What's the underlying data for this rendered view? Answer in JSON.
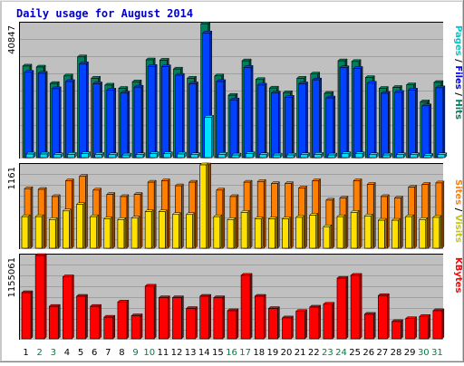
{
  "chart_data": [
    {
      "type": "bar",
      "title": "Daily usage for August 2014",
      "categories": [
        "1",
        "2",
        "3",
        "4",
        "5",
        "6",
        "7",
        "8",
        "9",
        "10",
        "11",
        "12",
        "13",
        "14",
        "15",
        "16",
        "17",
        "18",
        "19",
        "20",
        "21",
        "22",
        "23",
        "24",
        "25",
        "26",
        "27",
        "28",
        "29",
        "30",
        "31"
      ],
      "ylim": [
        0,
        40847
      ],
      "ymax_label": "40847",
      "grid": true,
      "series": [
        {
          "name": "Hits",
          "color": "#00805c",
          "values": [
            27900,
            27600,
            22600,
            24900,
            30700,
            24200,
            22100,
            21100,
            23100,
            29800,
            29700,
            27000,
            24200,
            40800,
            24900,
            19000,
            29500,
            23800,
            21200,
            19800,
            24200,
            25500,
            19600,
            29500,
            29300,
            24400,
            21100,
            21400,
            22200,
            17000,
            22900
          ]
        },
        {
          "name": "Files",
          "color": "#0042ff",
          "values": [
            26000,
            25700,
            21000,
            23200,
            28600,
            22500,
            20600,
            19700,
            21500,
            27800,
            27700,
            25100,
            22500,
            38000,
            23200,
            17600,
            27500,
            22100,
            19700,
            18400,
            22500,
            23700,
            18200,
            27400,
            27200,
            22700,
            19600,
            19900,
            20600,
            15800,
            21300
          ]
        },
        {
          "name": "Pages",
          "color": "#00e0ff",
          "values": [
            1100,
            1100,
            900,
            1000,
            1200,
            1000,
            900,
            800,
            900,
            1200,
            1200,
            1100,
            900,
            12300,
            1000,
            800,
            1200,
            900,
            800,
            800,
            900,
            1000,
            800,
            1200,
            1200,
            900,
            800,
            900,
            900,
            700,
            900
          ]
        }
      ],
      "y_title": [
        {
          "text": "Pages",
          "color": "#00c8c8"
        },
        {
          "text": "Files",
          "color": "#0000ff"
        },
        {
          "text": "Hits",
          "color": "#008060"
        }
      ]
    },
    {
      "type": "bar",
      "categories": [
        "1",
        "2",
        "3",
        "4",
        "5",
        "6",
        "7",
        "8",
        "9",
        "10",
        "11",
        "12",
        "13",
        "14",
        "15",
        "16",
        "17",
        "18",
        "19",
        "20",
        "21",
        "22",
        "23",
        "24",
        "25",
        "26",
        "27",
        "28",
        "29",
        "30",
        "31"
      ],
      "ylim": [
        0,
        1161
      ],
      "ymax_label": "1161",
      "grid": true,
      "series": [
        {
          "name": "Sites",
          "color": "#ff8000",
          "values": [
            830,
            820,
            720,
            940,
            1000,
            810,
            750,
            720,
            750,
            920,
            940,
            870,
            920,
            1161,
            810,
            720,
            920,
            930,
            900,
            900,
            840,
            940,
            670,
            700,
            940,
            890,
            720,
            700,
            850,
            890,
            910
          ]
        },
        {
          "name": "Visits",
          "color": "#ffe000",
          "values": [
            440,
            440,
            400,
            520,
            610,
            440,
            410,
            400,
            420,
            510,
            510,
            470,
            470,
            1161,
            440,
            400,
            500,
            410,
            410,
            410,
            430,
            460,
            300,
            440,
            500,
            450,
            390,
            390,
            440,
            400,
            430
          ]
        }
      ],
      "y_title": [
        {
          "text": "Sites",
          "color": "#ff8000"
        },
        {
          "text": "Visits",
          "color": "#c8c800"
        }
      ]
    },
    {
      "type": "bar",
      "categories": [
        "1",
        "2",
        "3",
        "4",
        "5",
        "6",
        "7",
        "8",
        "9",
        "10",
        "11",
        "12",
        "13",
        "14",
        "15",
        "16",
        "17",
        "18",
        "19",
        "20",
        "21",
        "22",
        "23",
        "24",
        "25",
        "26",
        "27",
        "28",
        "29",
        "30",
        "31"
      ],
      "ylim": [
        0,
        1155061
      ],
      "ymax_label": "1155061",
      "grid": true,
      "series": [
        {
          "name": "KBytes",
          "color": "#ff0000",
          "values": [
            640000,
            1155000,
            450000,
            860000,
            590000,
            450000,
            300000,
            510000,
            320000,
            730000,
            570000,
            570000,
            420000,
            590000,
            570000,
            390000,
            880000,
            590000,
            420000,
            290000,
            380000,
            440000,
            480000,
            840000,
            880000,
            340000,
            600000,
            240000,
            280000,
            310000,
            390000
          ]
        }
      ],
      "y_title": [
        {
          "text": "KBytes",
          "color": "#ff0000"
        }
      ]
    }
  ],
  "x_labels": [
    {
      "text": "1",
      "weekend": false
    },
    {
      "text": "2",
      "weekend": true
    },
    {
      "text": "3",
      "weekend": true
    },
    {
      "text": "4",
      "weekend": false
    },
    {
      "text": "5",
      "weekend": false
    },
    {
      "text": "6",
      "weekend": false
    },
    {
      "text": "7",
      "weekend": false
    },
    {
      "text": "8",
      "weekend": false
    },
    {
      "text": "9",
      "weekend": true
    },
    {
      "text": "10",
      "weekend": true
    },
    {
      "text": "11",
      "weekend": false
    },
    {
      "text": "12",
      "weekend": false
    },
    {
      "text": "13",
      "weekend": false
    },
    {
      "text": "14",
      "weekend": false
    },
    {
      "text": "15",
      "weekend": false
    },
    {
      "text": "16",
      "weekend": true
    },
    {
      "text": "17",
      "weekend": true
    },
    {
      "text": "18",
      "weekend": false
    },
    {
      "text": "19",
      "weekend": false
    },
    {
      "text": "20",
      "weekend": false
    },
    {
      "text": "21",
      "weekend": false
    },
    {
      "text": "22",
      "weekend": false
    },
    {
      "text": "23",
      "weekend": true
    },
    {
      "text": "24",
      "weekend": true
    },
    {
      "text": "25",
      "weekend": false
    },
    {
      "text": "26",
      "weekend": false
    },
    {
      "text": "27",
      "weekend": false
    },
    {
      "text": "28",
      "weekend": false
    },
    {
      "text": "29",
      "weekend": false
    },
    {
      "text": "30",
      "weekend": true
    },
    {
      "text": "31",
      "weekend": true
    }
  ],
  "colors": {
    "weekday_label": "#000000",
    "weekend_label": "#008040",
    "panel_bg": "#c0c0c0",
    "title": "#0000c8"
  }
}
